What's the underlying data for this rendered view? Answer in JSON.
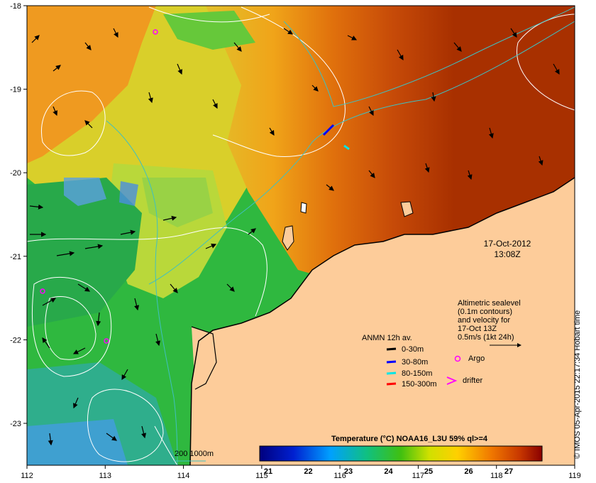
{
  "map": {
    "lon_ticks": [
      "112",
      "113",
      "114",
      "115",
      "116",
      "117",
      "118",
      "119"
    ],
    "lat_ticks": [
      "-18",
      "-19",
      "-20",
      "-21",
      "-22",
      "-23"
    ],
    "timestamp_date": "17-Oct-2012",
    "timestamp_time": "13:08Z",
    "altimetry_lines": [
      "Altimetric sealevel",
      "(0.1m contours)",
      "and velocity for",
      "17-Oct 13Z",
      "0.5m/s (1kt 24h)"
    ],
    "anmn_title": "ANMN 12h av.",
    "anmn_items": [
      {
        "label": "0-30m",
        "color": "#000000"
      },
      {
        "label": "30-80m",
        "color": "#0000ff"
      },
      {
        "label": "80-150m",
        "color": "#00e5e5"
      },
      {
        "label": "150-300m",
        "color": "#ff0000"
      }
    ],
    "argo_label": "Argo",
    "drifter_label": "drifter",
    "bathymetry_label": "200  1000m",
    "colorbar_title": "Temperature (°C) NOAA16_L3U 59% ql>=4",
    "colorbar_ticks": [
      "21",
      "22",
      "23",
      "24",
      "25",
      "26",
      "27"
    ],
    "credit": "© IMOS 05-Apr-2015 22:17:34 Hobart time",
    "colors": {
      "land": "#fdcc9a",
      "contour": "#ffffff",
      "isobath": "#40c0c0",
      "argo": "#ff00ff"
    }
  }
}
